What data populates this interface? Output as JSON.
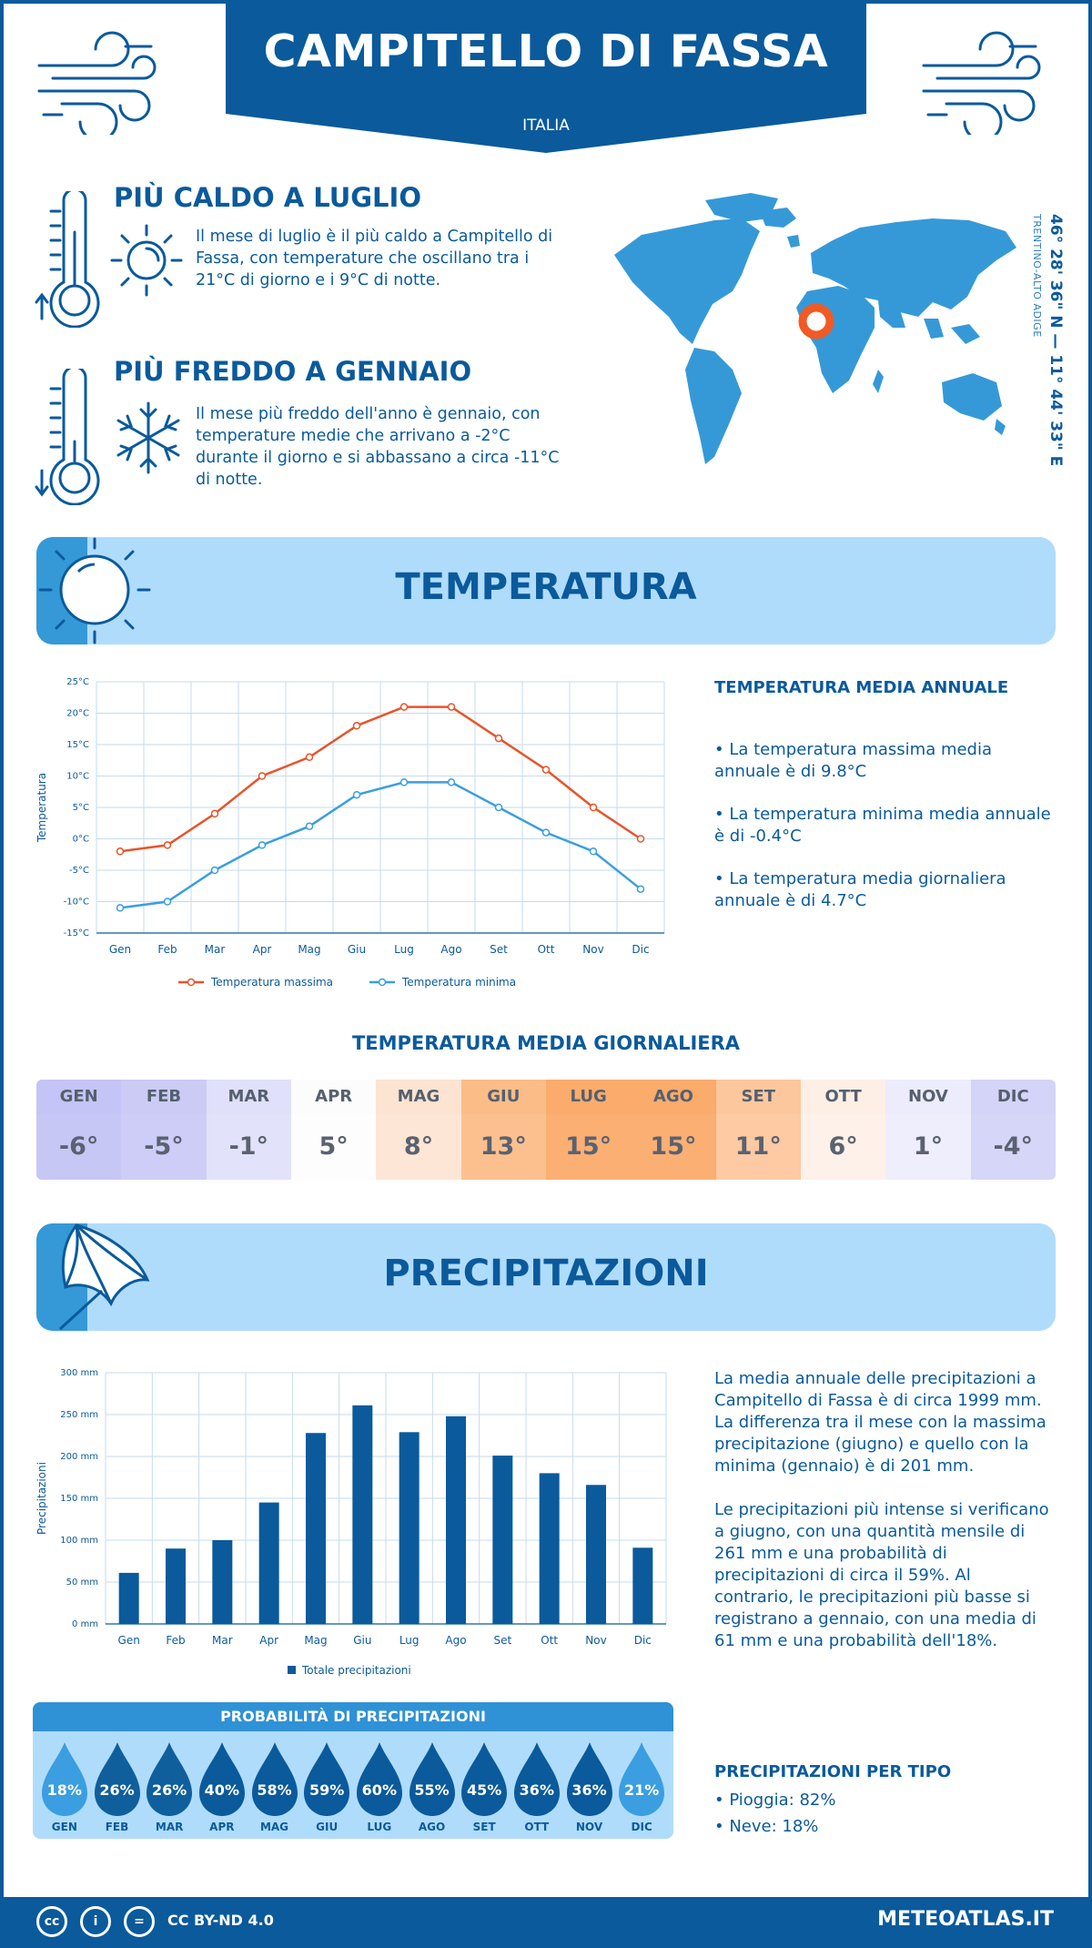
{
  "header": {
    "city": "CAMPITELLO DI FASSA",
    "country": "ITALIA"
  },
  "hottest": {
    "title": "PIÙ CALDO A LUGLIO",
    "text": "Il mese di luglio è il più caldo a Campitello di Fassa, con temperature che oscillano tra i 21°C di giorno e i 9°C di notte."
  },
  "coldest": {
    "title": "PIÙ FREDDO A GENNAIO",
    "text": "Il mese più freddo dell'anno è gennaio, con temperature medie che arrivano a -2°C durante il giorno e si abbassano a circa -11°C di notte."
  },
  "location": {
    "coords": "46° 28' 36\" N — 11° 44' 33\" E",
    "region": "TRENTINO-ALTO ADIGE"
  },
  "temperature_section": {
    "title": "TEMPERATURA",
    "annual_title": "TEMPERATURA MEDIA ANNUALE",
    "bullets": [
      "• La temperatura massima media annuale è di 9.8°C",
      "• La temperatura minima media annuale è di -0.4°C",
      "• La temperatura media giornaliera annuale è di 4.7°C"
    ]
  },
  "daily": {
    "title": "TEMPERATURA MEDIA GIORNALIERA",
    "months": [
      "GEN",
      "FEB",
      "MAR",
      "APR",
      "MAG",
      "GIU",
      "LUG",
      "AGO",
      "SET",
      "OTT",
      "NOV",
      "DIC"
    ],
    "values": [
      "-6°",
      "-5°",
      "-1°",
      "5°",
      "8°",
      "13°",
      "15°",
      "15°",
      "11°",
      "6°",
      "1°",
      "-4°"
    ],
    "header_colors": [
      "#c4c4f6",
      "#cbcbf6",
      "#e0e0fa",
      "#fdfcfc",
      "#fde3d2",
      "#fbbc88",
      "#fbab6c",
      "#fbab6c",
      "#fcc79d",
      "#fdefe6",
      "#ececfc",
      "#d4d4f8"
    ],
    "value_colors": [
      "#c7c7f6",
      "#cdcdf7",
      "#e2e2fb",
      "#fefdfd",
      "#fde6d6",
      "#fcc08f",
      "#fcaf73",
      "#fcaf73",
      "#fdcaa3",
      "#fef1e9",
      "#eeeefc",
      "#d6d6f8"
    ]
  },
  "precip_section": {
    "title": "PRECIPITAZIONI",
    "paragraph1": "La media annuale delle precipitazioni a Campitello di Fassa è di circa 1999 mm. La differenza tra il mese con la massima precipitazione (giugno) e quello con la minima (gennaio) è di 201 mm.",
    "paragraph2": "Le precipitazioni più intense si verificano a giugno, con una quantità mensile di 261 mm e una probabilità di precipitazioni di circa il 59%. Al contrario, le precipitazioni più basse si registrano a gennaio, con una media di 61 mm e una probabilità dell'18%.",
    "type_title": "PRECIPITAZIONI PER TIPO",
    "rain": "• Pioggia: 82%",
    "snow": "• Neve: 18%"
  },
  "probability": {
    "title": "PROBABILITÀ DI PRECIPITAZIONI",
    "months": [
      "GEN",
      "FEB",
      "MAR",
      "APR",
      "MAG",
      "GIU",
      "LUG",
      "AGO",
      "SET",
      "OTT",
      "NOV",
      "DIC"
    ],
    "values": [
      "18%",
      "26%",
      "26%",
      "40%",
      "58%",
      "59%",
      "60%",
      "55%",
      "45%",
      "36%",
      "36%",
      "21%"
    ],
    "drop_colors": [
      "#3a9ee0",
      "#0f5f9c",
      "#0f5f9c",
      "#0a5a9c",
      "#0a5a9c",
      "#0a5a9c",
      "#0a5a9c",
      "#0a5a9c",
      "#0a5a9c",
      "#0a5a9c",
      "#0a5a9c",
      "#3a9ee0"
    ]
  },
  "chart_data": [
    {
      "type": "line",
      "categories": [
        "Gen",
        "Feb",
        "Mar",
        "Apr",
        "Mag",
        "Giu",
        "Lug",
        "Ago",
        "Set",
        "Ott",
        "Nov",
        "Dic"
      ],
      "series": [
        {
          "name": "Temperatura massima",
          "values": [
            -2,
            -1,
            4,
            10,
            13,
            18,
            21,
            21,
            16,
            11,
            5,
            0
          ],
          "color": "#e8542a"
        },
        {
          "name": "Temperatura minima",
          "values": [
            -11,
            -10,
            -5,
            -1,
            2,
            7,
            9,
            9,
            5,
            1,
            -2,
            -8
          ],
          "color": "#3a9ee0"
        }
      ],
      "ylabel": "Temperatura",
      "ylim": [
        -15,
        25
      ],
      "yticks": [
        "-15°C",
        "-10°C",
        "-5°C",
        "0°C",
        "5°C",
        "10°C",
        "15°C",
        "20°C",
        "25°C"
      ],
      "grid": true,
      "legend": "bottom"
    },
    {
      "type": "bar",
      "categories": [
        "Gen",
        "Feb",
        "Mar",
        "Apr",
        "Mag",
        "Giu",
        "Lug",
        "Ago",
        "Set",
        "Ott",
        "Nov",
        "Dic"
      ],
      "series": [
        {
          "name": "Totale precipitazioni",
          "values": [
            61,
            90,
            100,
            145,
            228,
            261,
            229,
            248,
            201,
            180,
            166,
            91
          ],
          "color": "#0a5a9c"
        }
      ],
      "ylabel": "Precipitazioni",
      "ylim": [
        0,
        300
      ],
      "yticks": [
        "0 mm",
        "50 mm",
        "100 mm",
        "150 mm",
        "200 mm",
        "250 mm",
        "300 mm"
      ],
      "grid": true,
      "legend": "bottom"
    }
  ],
  "footer": {
    "license": "CC BY-ND 4.0",
    "brand": "METEOATLAS.IT"
  }
}
